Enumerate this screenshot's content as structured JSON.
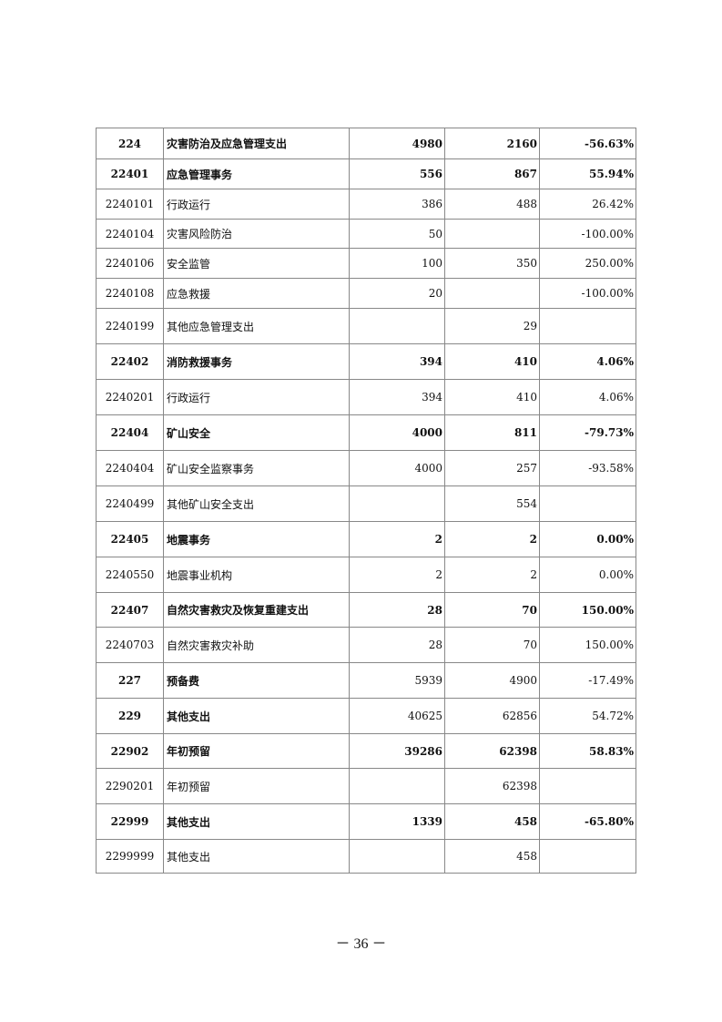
{
  "table": {
    "rows": [
      {
        "code": "224",
        "name": "灾害防治及应急管理支出",
        "v1": "4980",
        "v2": "2160",
        "pct": "-56.63%",
        "style": "boldall"
      },
      {
        "code": "22401",
        "name": "应急管理事务",
        "v1": "556",
        "v2": "867",
        "pct": "55.94%",
        "style": "boldall"
      },
      {
        "code": "2240101",
        "name": "行政运行",
        "v1": "386",
        "v2": "488",
        "pct": "26.42%",
        "style": ""
      },
      {
        "code": "2240104",
        "name": "灾害风险防治",
        "v1": "50",
        "v2": "",
        "pct": "-100.00%",
        "style": ""
      },
      {
        "code": "2240106",
        "name": "安全监管",
        "v1": "100",
        "v2": "350",
        "pct": "250.00%",
        "style": ""
      },
      {
        "code": "2240108",
        "name": "应急救援",
        "v1": "20",
        "v2": "",
        "pct": "-100.00%",
        "style": ""
      },
      {
        "code": "2240199",
        "name": "其他应急管理支出",
        "v1": "",
        "v2": "29",
        "pct": "",
        "style": ""
      },
      {
        "code": "22402",
        "name": "消防救援事务",
        "v1": "394",
        "v2": "410",
        "pct": "4.06%",
        "style": "boldall"
      },
      {
        "code": "2240201",
        "name": "行政运行",
        "v1": "394",
        "v2": "410",
        "pct": "4.06%",
        "style": ""
      },
      {
        "code": "22404",
        "name": "矿山安全",
        "v1": "4000",
        "v2": "811",
        "pct": "-79.73%",
        "style": "boldall"
      },
      {
        "code": "2240404",
        "name": "矿山安全监察事务",
        "v1": "4000",
        "v2": "257",
        "pct": "-93.58%",
        "style": ""
      },
      {
        "code": "2240499",
        "name": "其他矿山安全支出",
        "v1": "",
        "v2": "554",
        "pct": "",
        "style": ""
      },
      {
        "code": "22405",
        "name": "地震事务",
        "v1": "2",
        "v2": "2",
        "pct": "0.00%",
        "style": "boldall"
      },
      {
        "code": "2240550",
        "name": "地震事业机构",
        "v1": "2",
        "v2": "2",
        "pct": "0.00%",
        "style": ""
      },
      {
        "code": "22407",
        "name": "自然灾害救灾及恢复重建支出",
        "v1": "28",
        "v2": "70",
        "pct": "150.00%",
        "style": "boldall"
      },
      {
        "code": "2240703",
        "name": "自然灾害救灾补助",
        "v1": "28",
        "v2": "70",
        "pct": "150.00%",
        "style": ""
      },
      {
        "code": "227",
        "name": "预备费",
        "v1": "5939",
        "v2": "4900",
        "pct": "-17.49%",
        "style": "bold"
      },
      {
        "code": "229",
        "name": "其他支出",
        "v1": "40625",
        "v2": "62856",
        "pct": "54.72%",
        "style": "bold"
      },
      {
        "code": "22902",
        "name": "年初预留",
        "v1": "39286",
        "v2": "62398",
        "pct": "58.83%",
        "style": "boldall"
      },
      {
        "code": "2290201",
        "name": "年初预留",
        "v1": "",
        "v2": "62398",
        "pct": "",
        "style": ""
      },
      {
        "code": "22999",
        "name": "其他支出",
        "v1": "1339",
        "v2": "458",
        "pct": "-65.80%",
        "style": "boldall"
      },
      {
        "code": "2299999",
        "name": "其他支出",
        "v1": "",
        "v2": "458",
        "pct": "",
        "style": ""
      }
    ]
  },
  "footer": {
    "page_number": "－ 36 －"
  }
}
